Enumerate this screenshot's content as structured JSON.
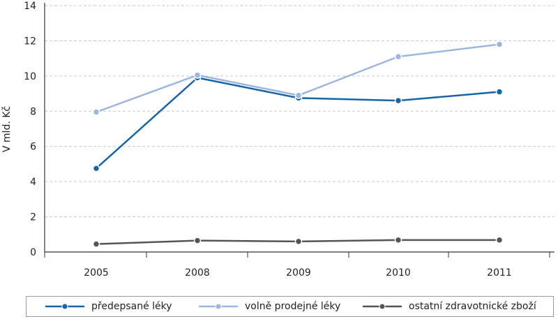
{
  "chart_data": {
    "type": "line",
    "ylabel": "V mld. Kč",
    "ylim": [
      0,
      14
    ],
    "yticks": [
      0,
      2,
      4,
      6,
      8,
      10,
      12,
      14
    ],
    "categories": [
      "2005",
      "2008",
      "2009",
      "2010",
      "2011"
    ],
    "grid": "horizontal dashed",
    "legend_position": "bottom",
    "series": [
      {
        "name": "předepsané léky",
        "color": "#1565a8",
        "values": [
          4.75,
          9.9,
          8.75,
          8.6,
          9.1
        ]
      },
      {
        "name": "volně prodejné léky",
        "color": "#9db6dd",
        "values": [
          7.95,
          10.05,
          8.9,
          11.1,
          11.8
        ]
      },
      {
        "name": "ostatní zdravotnické zboží",
        "color": "#555555",
        "values": [
          0.45,
          0.65,
          0.6,
          0.68,
          0.68
        ]
      }
    ]
  }
}
